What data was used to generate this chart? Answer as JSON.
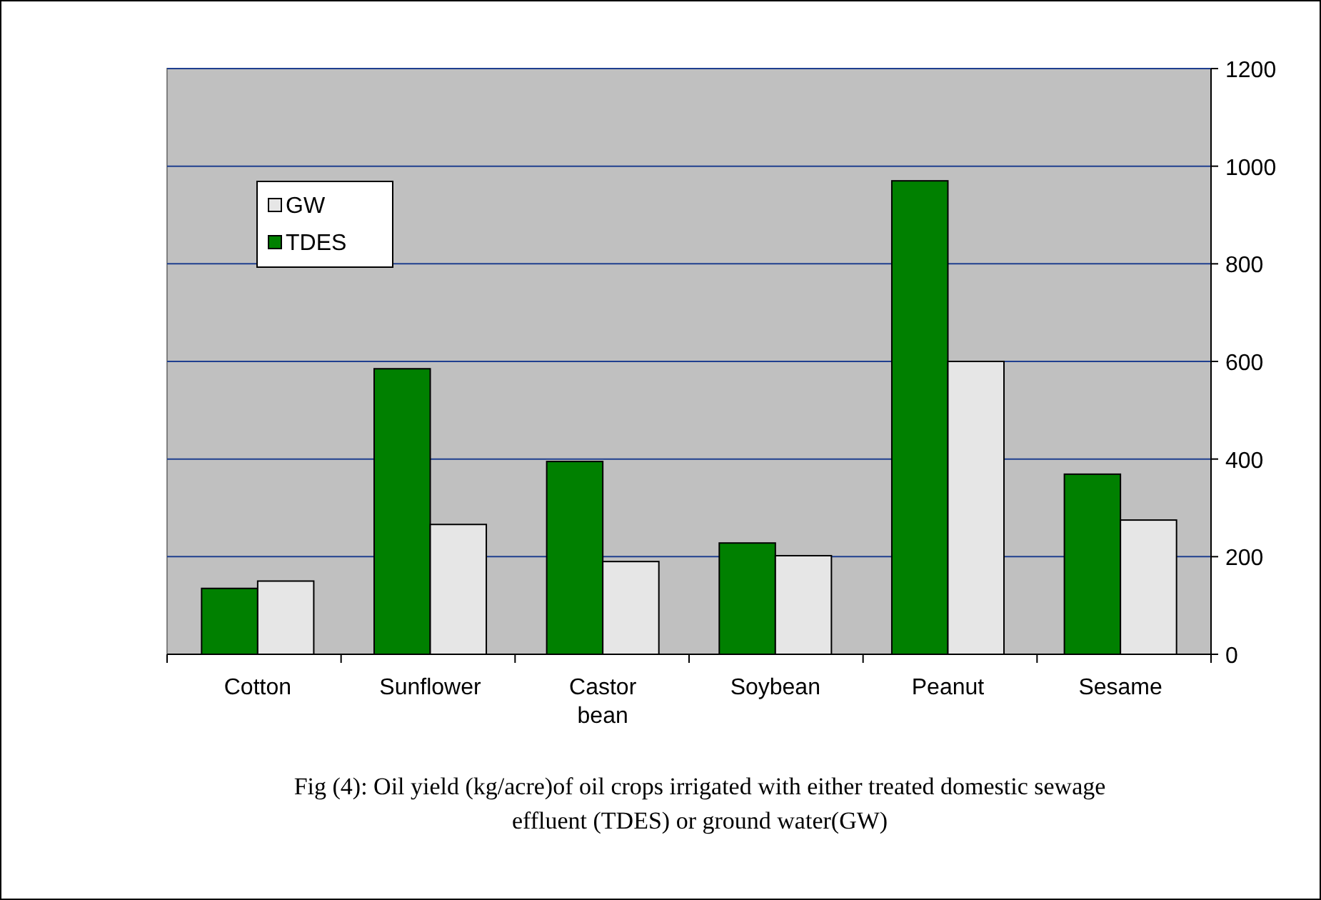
{
  "chart_data": {
    "type": "bar",
    "title": "Fig (4): Oil yield (kg/acre)of oil crops irrigated with either treated domestic sewage effluent (TDES) or ground water(GW)",
    "categories": [
      "Cotton",
      "Sunflower",
      "Castor bean",
      "Soybean",
      "Peanut",
      "Sesame"
    ],
    "series": [
      {
        "name": "TDES",
        "color": "#008000",
        "values": [
          135,
          585,
          395,
          228,
          970,
          369
        ]
      },
      {
        "name": "GW",
        "color": "#e6e6e6",
        "values": [
          150,
          266,
          190,
          202,
          600,
          275
        ]
      }
    ],
    "ylim": [
      0,
      1200
    ],
    "yticks": [
      0,
      200,
      400,
      600,
      800,
      1000,
      1200
    ],
    "grid": "y",
    "legend": "top left"
  }
}
